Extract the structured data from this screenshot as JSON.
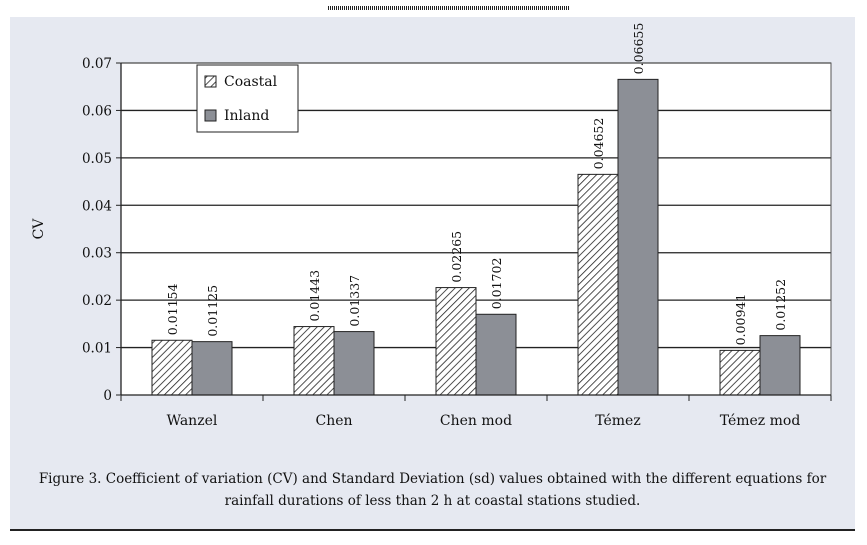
{
  "chart_data": {
    "type": "bar",
    "categories": [
      "Wanzel",
      "Chen",
      "Chen mod",
      "Témez",
      "Témez mod"
    ],
    "series": [
      {
        "name": "Coastal",
        "values": [
          0.01154,
          0.01443,
          0.02265,
          0.04652,
          0.00941
        ],
        "labels": [
          "0.01154",
          "0.01443",
          "0.02265",
          "0.04652",
          "0.00941"
        ],
        "pattern": "hatched"
      },
      {
        "name": "Inland",
        "values": [
          0.01125,
          0.01337,
          0.01702,
          0.06655,
          0.01252
        ],
        "labels": [
          "0.01125",
          "0.01337",
          "0.01702",
          "0.06655",
          "0.01252"
        ],
        "color": "#8c8f96"
      }
    ],
    "ylabel": "CV",
    "ylim": [
      0,
      0.07
    ],
    "yticks": [
      "0",
      "0.01",
      "0.02",
      "0.03",
      "0.04",
      "0.05",
      "0.06",
      "0.07"
    ],
    "grid": true,
    "legend_position": "top-left"
  },
  "caption": "Figure 3. Coefficient of variation (CV) and Standard Deviation (sd) values obtained with the different equations for rainfall durations of less than 2 h at coastal stations studied."
}
